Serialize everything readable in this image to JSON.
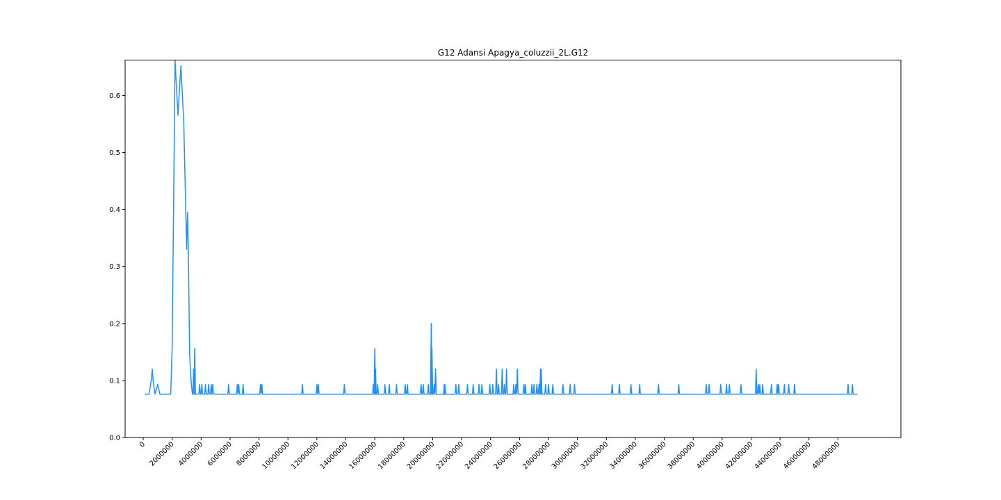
{
  "chart_data": {
    "type": "line",
    "title": "G12 Adansi Apagya_coluzzii_2L.G12",
    "xlabel": "",
    "ylabel": "",
    "xlim": [
      -1250000,
      52350000
    ],
    "ylim": [
      0.0,
      0.662
    ],
    "grid": false,
    "x_ticks": [
      0,
      2000000,
      4000000,
      6000000,
      8000000,
      10000000,
      12000000,
      14000000,
      16000000,
      18000000,
      20000000,
      22000000,
      24000000,
      26000000,
      28000000,
      30000000,
      32000000,
      34000000,
      36000000,
      38000000,
      40000000,
      42000000,
      44000000,
      46000000,
      48000000
    ],
    "x_tick_labels": [
      "0",
      "2000000",
      "4000000",
      "6000000",
      "8000000",
      "10000000",
      "12000000",
      "14000000",
      "16000000",
      "18000000",
      "20000000",
      "22000000",
      "24000000",
      "26000000",
      "28000000",
      "30000000",
      "32000000",
      "34000000",
      "36000000",
      "38000000",
      "40000000",
      "42000000",
      "44000000",
      "46000000",
      "48000000"
    ],
    "y_ticks": [
      0.0,
      0.1,
      0.2,
      0.3,
      0.4,
      0.5,
      0.6
    ],
    "y_tick_labels": [
      "0.0",
      "0.1",
      "0.2",
      "0.3",
      "0.4",
      "0.5",
      "0.6"
    ],
    "series": [
      {
        "color": "#1e90ff",
        "baseline": 0.076,
        "main_curve": [
          [
            100000,
            0.076
          ],
          [
            400000,
            0.076
          ],
          [
            550000,
            0.1
          ],
          [
            630000,
            0.12
          ],
          [
            700000,
            0.096
          ],
          [
            820000,
            0.076
          ],
          [
            1000000,
            0.093
          ],
          [
            1150000,
            0.076
          ],
          [
            1900000,
            0.076
          ],
          [
            2000000,
            0.16
          ],
          [
            2200000,
            0.662
          ],
          [
            2400000,
            0.565
          ],
          [
            2600000,
            0.652
          ],
          [
            2800000,
            0.555
          ],
          [
            3000000,
            0.33
          ],
          [
            3060000,
            0.395
          ],
          [
            3120000,
            0.325
          ],
          [
            3200000,
            0.15
          ],
          [
            3260000,
            0.12
          ],
          [
            3320000,
            0.094
          ],
          [
            3400000,
            0.076
          ]
        ],
        "spikes": [
          {
            "x": 3480000,
            "y": 0.12
          },
          {
            "x": 3560000,
            "y": 0.156
          },
          {
            "x": 3900000,
            "y": 0.093
          },
          {
            "x": 4050000,
            "y": 0.093
          },
          {
            "x": 4300000,
            "y": 0.093
          },
          {
            "x": 4520000,
            "y": 0.093
          },
          {
            "x": 4700000,
            "y": 0.093
          },
          {
            "x": 4800000,
            "y": 0.093
          },
          {
            "x": 5900000,
            "y": 0.093
          },
          {
            "x": 6500000,
            "y": 0.093
          },
          {
            "x": 6600000,
            "y": 0.093
          },
          {
            "x": 6900000,
            "y": 0.093
          },
          {
            "x": 8100000,
            "y": 0.093
          },
          {
            "x": 8200000,
            "y": 0.093
          },
          {
            "x": 11000000,
            "y": 0.093
          },
          {
            "x": 12000000,
            "y": 0.093
          },
          {
            "x": 12100000,
            "y": 0.093
          },
          {
            "x": 13900000,
            "y": 0.093
          },
          {
            "x": 15900000,
            "y": 0.093
          },
          {
            "x": 16000000,
            "y": 0.156
          },
          {
            "x": 16050000,
            "y": 0.12
          },
          {
            "x": 16200000,
            "y": 0.093
          },
          {
            "x": 16700000,
            "y": 0.093
          },
          {
            "x": 17000000,
            "y": 0.093
          },
          {
            "x": 17500000,
            "y": 0.093
          },
          {
            "x": 18100000,
            "y": 0.093
          },
          {
            "x": 18250000,
            "y": 0.093
          },
          {
            "x": 19200000,
            "y": 0.093
          },
          {
            "x": 19350000,
            "y": 0.093
          },
          {
            "x": 19700000,
            "y": 0.093
          },
          {
            "x": 19900000,
            "y": 0.2
          },
          {
            "x": 19950000,
            "y": 0.156
          },
          {
            "x": 20100000,
            "y": 0.093
          },
          {
            "x": 20200000,
            "y": 0.12
          },
          {
            "x": 20800000,
            "y": 0.093
          },
          {
            "x": 20850000,
            "y": 0.093
          },
          {
            "x": 21600000,
            "y": 0.093
          },
          {
            "x": 21800000,
            "y": 0.093
          },
          {
            "x": 22400000,
            "y": 0.093
          },
          {
            "x": 22800000,
            "y": 0.093
          },
          {
            "x": 23200000,
            "y": 0.093
          },
          {
            "x": 23400000,
            "y": 0.093
          },
          {
            "x": 23950000,
            "y": 0.093
          },
          {
            "x": 24150000,
            "y": 0.093
          },
          {
            "x": 24400000,
            "y": 0.12
          },
          {
            "x": 24550000,
            "y": 0.093
          },
          {
            "x": 24800000,
            "y": 0.12
          },
          {
            "x": 24950000,
            "y": 0.093
          },
          {
            "x": 25100000,
            "y": 0.12
          },
          {
            "x": 25600000,
            "y": 0.093
          },
          {
            "x": 25750000,
            "y": 0.093
          },
          {
            "x": 25850000,
            "y": 0.12
          },
          {
            "x": 26300000,
            "y": 0.093
          },
          {
            "x": 26400000,
            "y": 0.093
          },
          {
            "x": 26850000,
            "y": 0.093
          },
          {
            "x": 27000000,
            "y": 0.093
          },
          {
            "x": 27200000,
            "y": 0.093
          },
          {
            "x": 27350000,
            "y": 0.093
          },
          {
            "x": 27450000,
            "y": 0.12
          },
          {
            "x": 27500000,
            "y": 0.12
          },
          {
            "x": 27800000,
            "y": 0.093
          },
          {
            "x": 28000000,
            "y": 0.093
          },
          {
            "x": 28300000,
            "y": 0.093
          },
          {
            "x": 29000000,
            "y": 0.093
          },
          {
            "x": 29500000,
            "y": 0.093
          },
          {
            "x": 29800000,
            "y": 0.093
          },
          {
            "x": 32400000,
            "y": 0.093
          },
          {
            "x": 32900000,
            "y": 0.093
          },
          {
            "x": 33700000,
            "y": 0.093
          },
          {
            "x": 34300000,
            "y": 0.093
          },
          {
            "x": 35600000,
            "y": 0.093
          },
          {
            "x": 37000000,
            "y": 0.093
          },
          {
            "x": 38900000,
            "y": 0.093
          },
          {
            "x": 39100000,
            "y": 0.093
          },
          {
            "x": 39900000,
            "y": 0.093
          },
          {
            "x": 40300000,
            "y": 0.093
          },
          {
            "x": 40500000,
            "y": 0.093
          },
          {
            "x": 41300000,
            "y": 0.093
          },
          {
            "x": 42350000,
            "y": 0.12
          },
          {
            "x": 42500000,
            "y": 0.093
          },
          {
            "x": 42600000,
            "y": 0.093
          },
          {
            "x": 42800000,
            "y": 0.093
          },
          {
            "x": 43400000,
            "y": 0.093
          },
          {
            "x": 43800000,
            "y": 0.093
          },
          {
            "x": 43900000,
            "y": 0.093
          },
          {
            "x": 44300000,
            "y": 0.093
          },
          {
            "x": 44600000,
            "y": 0.093
          },
          {
            "x": 45000000,
            "y": 0.093
          },
          {
            "x": 48700000,
            "y": 0.093
          },
          {
            "x": 49000000,
            "y": 0.093
          }
        ],
        "end_x": 49350000
      }
    ]
  }
}
